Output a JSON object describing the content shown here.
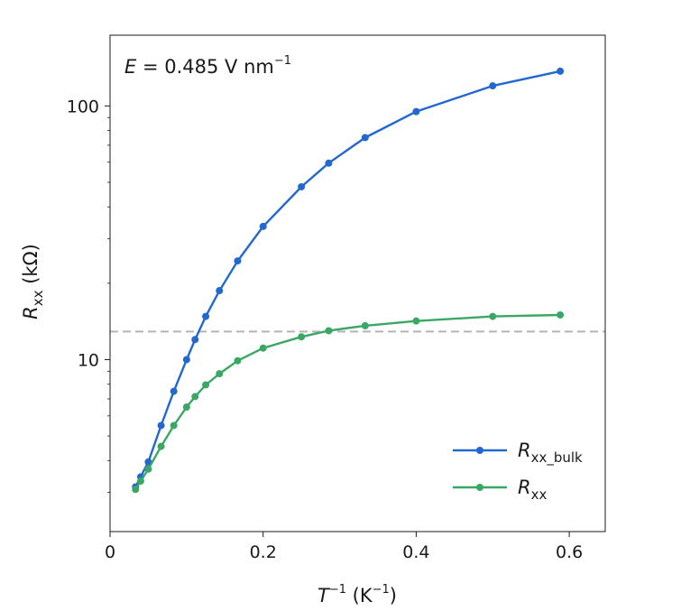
{
  "chart_data": {
    "type": "line",
    "title": "",
    "xlabel": {
      "base": "T",
      "exp": "−1",
      "unit_open": " (K",
      "unit_exp": "−1",
      "unit_close": ")"
    },
    "ylabel": {
      "base": "R",
      "sub": "xx",
      "unit": " (kΩ)"
    },
    "annotation": {
      "var": "E",
      "text": " = 0.485 V nm",
      "exp": "−1"
    },
    "xlim": [
      0,
      0.647
    ],
    "ylim": [
      2.1,
      190
    ],
    "yscale": "log",
    "xticks": [
      {
        "value": 0,
        "label": "0"
      },
      {
        "value": 0.2,
        "label": "0.2"
      },
      {
        "value": 0.4,
        "label": "0.4"
      },
      {
        "value": 0.6,
        "label": "0.6"
      }
    ],
    "yticks": [
      {
        "value": 10,
        "label": "10"
      },
      {
        "value": 100,
        "label": "100"
      }
    ],
    "hline": {
      "value": 12.9,
      "color": "#b3b3b3",
      "style": "dashed"
    },
    "legend_position": "lower-right",
    "series": [
      {
        "name_base": "R",
        "name_sub": "xx_bulk",
        "color": "#2268cf",
        "x": [
          0.0333,
          0.04,
          0.05,
          0.0667,
          0.0833,
          0.1,
          0.1111,
          0.125,
          0.1429,
          0.1667,
          0.2,
          0.25,
          0.2857,
          0.3333,
          0.4,
          0.5,
          0.5882
        ],
        "y": [
          3.15,
          3.45,
          3.95,
          5.5,
          7.5,
          10.0,
          12.0,
          14.8,
          18.7,
          24.5,
          33.5,
          48.0,
          59.5,
          75.0,
          95.0,
          120.0,
          137.0
        ]
      },
      {
        "name_base": "R",
        "name_sub": "xx",
        "color": "#3aa864",
        "x": [
          0.0333,
          0.04,
          0.05,
          0.0667,
          0.0833,
          0.1,
          0.1111,
          0.125,
          0.1429,
          0.1667,
          0.2,
          0.25,
          0.2857,
          0.3333,
          0.4,
          0.5,
          0.5882
        ],
        "y": [
          3.08,
          3.32,
          3.7,
          4.55,
          5.5,
          6.5,
          7.15,
          7.95,
          8.8,
          9.9,
          11.1,
          12.3,
          13.0,
          13.6,
          14.2,
          14.8,
          15.0
        ]
      }
    ]
  }
}
